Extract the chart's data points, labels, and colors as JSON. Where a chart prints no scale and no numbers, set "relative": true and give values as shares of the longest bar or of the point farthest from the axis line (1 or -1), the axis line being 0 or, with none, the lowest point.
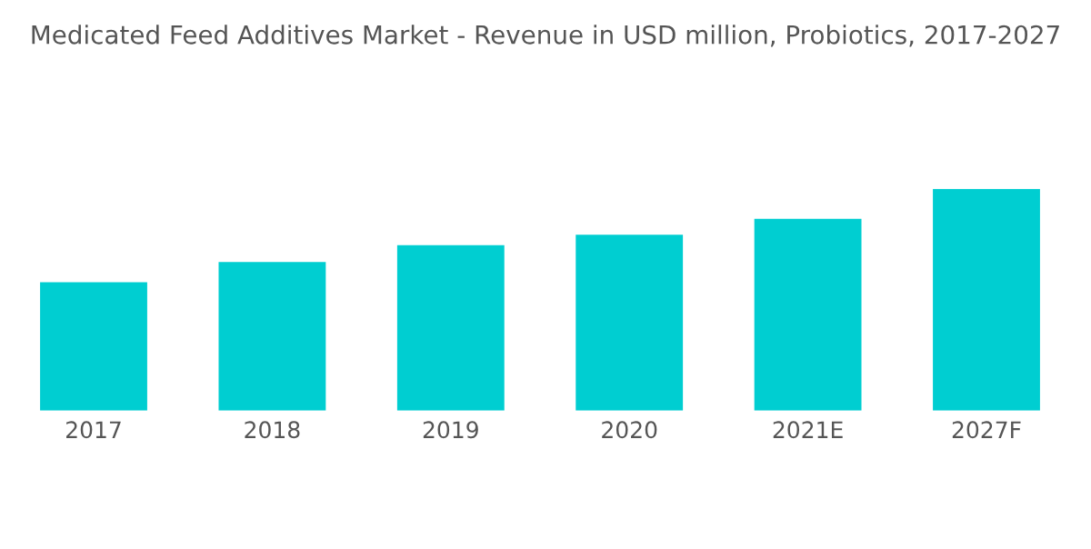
{
  "chart_data": {
    "type": "bar",
    "title": "Medicated Feed Additives Market - Revenue in USD million, Probiotics, 2017-2027",
    "categories": [
      "2017",
      "2018",
      "2019",
      "2020",
      "2021E",
      "2027F"
    ],
    "values": [
      0.579,
      0.67,
      0.746,
      0.793,
      0.865,
      1
    ],
    "color": "#00ced1",
    "relative": true,
    "grid": false,
    "legend": false
  }
}
